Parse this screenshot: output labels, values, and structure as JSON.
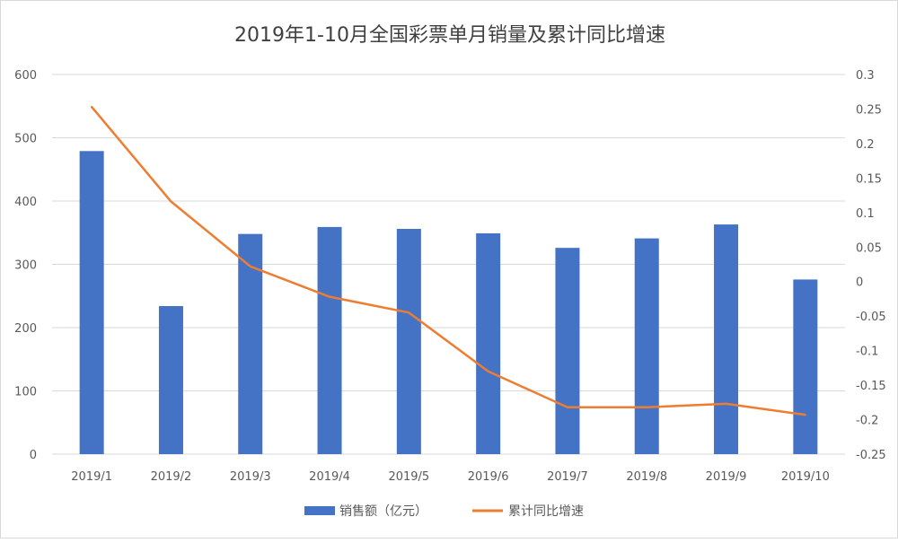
{
  "chart_data": {
    "type": "bar",
    "title": "2019年1-10月全国彩票单月销量及累计同比增速",
    "categories": [
      "2019/1",
      "2019/2",
      "2019/3",
      "2019/4",
      "2019/5",
      "2019/6",
      "2019/7",
      "2019/8",
      "2019/9",
      "2019/10"
    ],
    "series": [
      {
        "name": "销售额（亿元）",
        "type": "bar",
        "axis": "left",
        "color": "#4472C4",
        "values": [
          479,
          234,
          348,
          359,
          356,
          349,
          326,
          341,
          363,
          276
        ]
      },
      {
        "name": "累计同比增速",
        "type": "line",
        "axis": "right",
        "color": "#ED7D31",
        "values": [
          0.253,
          0.116,
          0.022,
          -0.022,
          -0.045,
          -0.13,
          -0.182,
          -0.182,
          -0.177,
          -0.193
        ]
      }
    ],
    "y_left": {
      "min": 0,
      "max": 600,
      "ticks": [
        "0",
        "100",
        "200",
        "300",
        "400",
        "500",
        "600"
      ]
    },
    "y_right": {
      "min": -0.25,
      "max": 0.3,
      "ticks": [
        "0.3",
        "0.25",
        "0.2",
        "0.15",
        "0.1",
        "0.05",
        "0",
        "-0.05",
        "-0.1",
        "-0.15",
        "-0.2",
        "-0.25"
      ]
    },
    "grid": true,
    "legend_position": "bottom"
  }
}
